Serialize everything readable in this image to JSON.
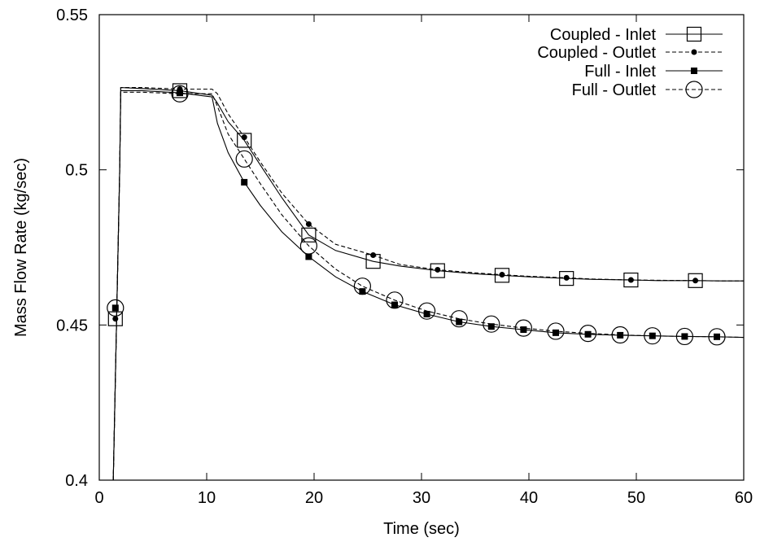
{
  "chart_data": {
    "type": "line",
    "title": "",
    "xlabel": "Time  (sec)",
    "ylabel": "Mass Flow Rate (kg/sec)",
    "xlim": [
      0,
      60
    ],
    "ylim": [
      0.4,
      0.55
    ],
    "x_ticks": [
      0,
      10,
      20,
      30,
      40,
      50,
      60
    ],
    "x_tick_labels": [
      "0",
      "10",
      "20",
      "30",
      "40",
      "50",
      "60"
    ],
    "y_ticks": [
      0.4,
      0.45,
      0.5,
      0.55
    ],
    "y_tick_labels": [
      "0.4",
      "0.45",
      "0.5",
      "0.55"
    ],
    "grid": false,
    "legend_position": "top-right",
    "series": [
      {
        "name": "Coupled - Inlet",
        "line": "solid",
        "marker": "open-square",
        "x": [
          1.3,
          1.9,
          2.0,
          4,
          7.5,
          10.5,
          11,
          12,
          13.5,
          15,
          17,
          19.5,
          22,
          25.5,
          28,
          31.5,
          35,
          37.5,
          40,
          43.5,
          46,
          49.5,
          52,
          55.5,
          58,
          60
        ],
        "y": [
          0.4,
          0.5,
          0.5265,
          0.5262,
          0.5255,
          0.524,
          0.5215,
          0.5155,
          0.5095,
          0.5015,
          0.491,
          0.479,
          0.474,
          0.4705,
          0.469,
          0.4675,
          0.4665,
          0.466,
          0.4655,
          0.465,
          0.4647,
          0.4645,
          0.4643,
          0.4643,
          0.4642,
          0.4642
        ],
        "marker_x": [
          1.5,
          7.5,
          13.5,
          19.5,
          25.5,
          31.5,
          37.5,
          43.5,
          49.5,
          55.5
        ],
        "marker_y": [
          0.452,
          0.5255,
          0.5095,
          0.479,
          0.4705,
          0.4675,
          0.466,
          0.465,
          0.4645,
          0.4643
        ]
      },
      {
        "name": "Coupled - Outlet",
        "line": "dashed",
        "marker": "filled-circle",
        "x": [
          1.3,
          1.9,
          2.0,
          4,
          7.5,
          10.5,
          11,
          12,
          13.5,
          15,
          17,
          19.5,
          22,
          25.5,
          28,
          31.5,
          35,
          37.5,
          40,
          43.5,
          46,
          49.5,
          52,
          55.5,
          58,
          60
        ],
        "y": [
          0.4,
          0.5,
          0.5265,
          0.5265,
          0.526,
          0.526,
          0.5245,
          0.518,
          0.5105,
          0.5025,
          0.4925,
          0.4825,
          0.476,
          0.4725,
          0.4695,
          0.4678,
          0.4668,
          0.4662,
          0.4657,
          0.4652,
          0.4648,
          0.4645,
          0.4644,
          0.4643,
          0.4642,
          0.4642
        ],
        "marker_x": [
          1.5,
          7.5,
          13.5,
          19.5,
          25.5,
          31.5,
          37.5,
          43.5,
          49.5,
          55.5
        ],
        "marker_y": [
          0.452,
          0.526,
          0.5105,
          0.4825,
          0.4725,
          0.4678,
          0.4662,
          0.4652,
          0.4645,
          0.4643
        ]
      },
      {
        "name": "Full - Inlet",
        "line": "solid",
        "marker": "filled-square",
        "x": [
          1.3,
          1.9,
          2.0,
          4,
          7.5,
          10.5,
          11,
          12,
          13.5,
          15,
          17,
          19.5,
          22,
          24.5,
          27.5,
          30.5,
          33.5,
          36.5,
          39.5,
          42.5,
          45.5,
          48.5,
          51.5,
          54.5,
          57.5,
          60
        ],
        "y": [
          0.4,
          0.5,
          0.5255,
          0.5255,
          0.5248,
          0.5235,
          0.515,
          0.5055,
          0.496,
          0.4885,
          0.48,
          0.472,
          0.4655,
          0.4608,
          0.4565,
          0.4535,
          0.451,
          0.4495,
          0.4485,
          0.4475,
          0.447,
          0.4467,
          0.4465,
          0.4463,
          0.4462,
          0.446
        ],
        "marker_x": [
          1.5,
          7.5,
          13.5,
          19.5,
          24.5,
          27.5,
          30.5,
          33.5,
          36.5,
          39.5,
          42.5,
          45.5,
          48.5,
          51.5,
          54.5,
          57.5
        ],
        "marker_y": [
          0.4555,
          0.5248,
          0.496,
          0.472,
          0.4608,
          0.4565,
          0.4535,
          0.451,
          0.4495,
          0.4485,
          0.4475,
          0.447,
          0.4467,
          0.4465,
          0.4463,
          0.4462
        ]
      },
      {
        "name": "Full - Outlet",
        "line": "dashed",
        "marker": "open-circle",
        "x": [
          1.3,
          1.9,
          2.0,
          4,
          7.5,
          10.5,
          11,
          12,
          13.5,
          15,
          17,
          19.5,
          22,
          24.5,
          27.5,
          30.5,
          33.5,
          36.5,
          39.5,
          42.5,
          45.5,
          48.5,
          51.5,
          54.5,
          57.5,
          60
        ],
        "y": [
          0.4,
          0.5,
          0.525,
          0.525,
          0.5245,
          0.5245,
          0.5205,
          0.5115,
          0.5035,
          0.4955,
          0.4855,
          0.4755,
          0.468,
          0.4625,
          0.458,
          0.4545,
          0.452,
          0.4503,
          0.449,
          0.448,
          0.4473,
          0.4468,
          0.4465,
          0.4463,
          0.4462,
          0.446
        ],
        "marker_x": [
          1.5,
          7.5,
          13.5,
          19.5,
          24.5,
          27.5,
          30.5,
          33.5,
          36.5,
          39.5,
          42.5,
          45.5,
          48.5,
          51.5,
          54.5,
          57.5
        ],
        "marker_y": [
          0.4555,
          0.5245,
          0.5035,
          0.4755,
          0.4625,
          0.458,
          0.4545,
          0.452,
          0.4503,
          0.449,
          0.448,
          0.4473,
          0.4468,
          0.4465,
          0.4463,
          0.4462
        ]
      }
    ]
  }
}
